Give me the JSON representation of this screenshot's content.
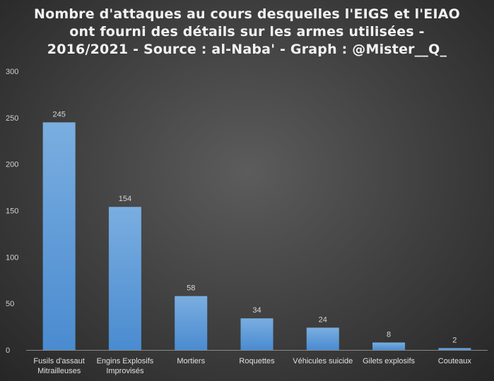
{
  "chart_data": {
    "type": "bar",
    "title_lines": [
      "Nombre d'attaques au cours desquelles l'EIGS et l'EIAO",
      "ont fourni des détails sur les armes utilisées -",
      "2016/2021 - Source : al-Naba' - Graph : @Mister__Q_"
    ],
    "categories": [
      [
        "Fusils d'assaut",
        "Mitrailleuses"
      ],
      [
        "Engins Explosifs",
        "Improvisés"
      ],
      [
        "Mortiers"
      ],
      [
        "Roquettes"
      ],
      [
        "Véhicules suicide"
      ],
      [
        "Gilets explosifs"
      ],
      [
        "Couteaux"
      ]
    ],
    "values": [
      245,
      154,
      58,
      34,
      24,
      8,
      2
    ],
    "ylim": [
      0,
      300
    ],
    "yticks": [
      0,
      50,
      100,
      150,
      200,
      250,
      300
    ],
    "grid": false,
    "legend": "none",
    "bar_color": "#5b9bd5"
  }
}
